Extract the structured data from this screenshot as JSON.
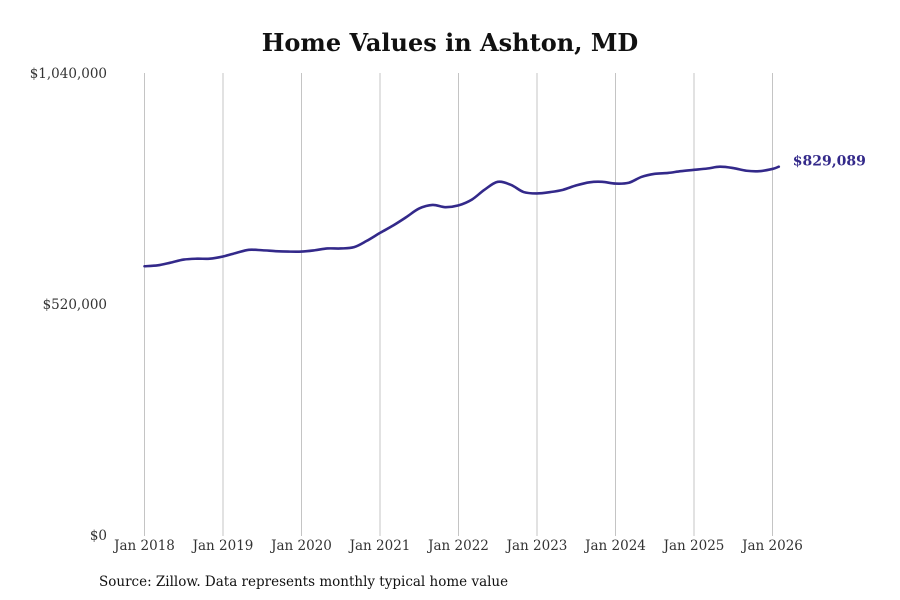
{
  "chart_data": {
    "type": "line",
    "title": "Home Values in Ashton, MD",
    "xlabel": "",
    "ylabel": "",
    "ylim": [
      0,
      1040000
    ],
    "yticks": [
      {
        "value": 0,
        "label": "$0"
      },
      {
        "value": 520000,
        "label": "$520,000"
      },
      {
        "value": 1040000,
        "label": "$1,040,000"
      }
    ],
    "xticks": [
      {
        "value": 2018,
        "label": "Jan 2018"
      },
      {
        "value": 2019,
        "label": "Jan 2019"
      },
      {
        "value": 2020,
        "label": "Jan 2020"
      },
      {
        "value": 2021,
        "label": "Jan 2021"
      },
      {
        "value": 2022,
        "label": "Jan 2022"
      },
      {
        "value": 2023,
        "label": "Jan 2023"
      },
      {
        "value": 2024,
        "label": "Jan 2024"
      },
      {
        "value": 2025,
        "label": "Jan 2025"
      },
      {
        "value": 2026,
        "label": "Jan 2026"
      }
    ],
    "grid": {
      "vertical": true,
      "horizontal": false
    },
    "series": [
      {
        "color": "#33298a",
        "points": [
          [
            2018.0,
            605000
          ],
          [
            2018.17,
            607000
          ],
          [
            2018.33,
            613000
          ],
          [
            2018.5,
            620000
          ],
          [
            2018.67,
            622000
          ],
          [
            2018.83,
            622000
          ],
          [
            2019.0,
            627000
          ],
          [
            2019.17,
            635000
          ],
          [
            2019.33,
            642000
          ],
          [
            2019.5,
            641000
          ],
          [
            2019.67,
            639000
          ],
          [
            2019.83,
            638000
          ],
          [
            2020.0,
            638000
          ],
          [
            2020.17,
            641000
          ],
          [
            2020.33,
            645000
          ],
          [
            2020.5,
            645000
          ],
          [
            2020.67,
            648000
          ],
          [
            2020.83,
            662000
          ],
          [
            2021.0,
            680000
          ],
          [
            2021.17,
            697000
          ],
          [
            2021.33,
            715000
          ],
          [
            2021.5,
            735000
          ],
          [
            2021.67,
            743000
          ],
          [
            2021.83,
            738000
          ],
          [
            2022.0,
            742000
          ],
          [
            2022.17,
            755000
          ],
          [
            2022.33,
            777000
          ],
          [
            2022.5,
            795000
          ],
          [
            2022.67,
            788000
          ],
          [
            2022.83,
            772000
          ],
          [
            2023.0,
            769000
          ],
          [
            2023.17,
            772000
          ],
          [
            2023.33,
            777000
          ],
          [
            2023.5,
            787000
          ],
          [
            2023.67,
            794000
          ],
          [
            2023.83,
            795000
          ],
          [
            2024.0,
            791000
          ],
          [
            2024.17,
            793000
          ],
          [
            2024.33,
            806000
          ],
          [
            2024.5,
            813000
          ],
          [
            2024.67,
            815000
          ],
          [
            2024.83,
            819000
          ],
          [
            2025.0,
            822000
          ],
          [
            2025.17,
            825000
          ],
          [
            2025.33,
            829000
          ],
          [
            2025.5,
            826000
          ],
          [
            2025.67,
            820000
          ],
          [
            2025.83,
            819000
          ],
          [
            2026.0,
            824000
          ],
          [
            2026.08,
            829089
          ]
        ]
      }
    ],
    "end_label": "$829,089"
  },
  "source_text": "Source: Zillow. Data represents monthly typical home value"
}
